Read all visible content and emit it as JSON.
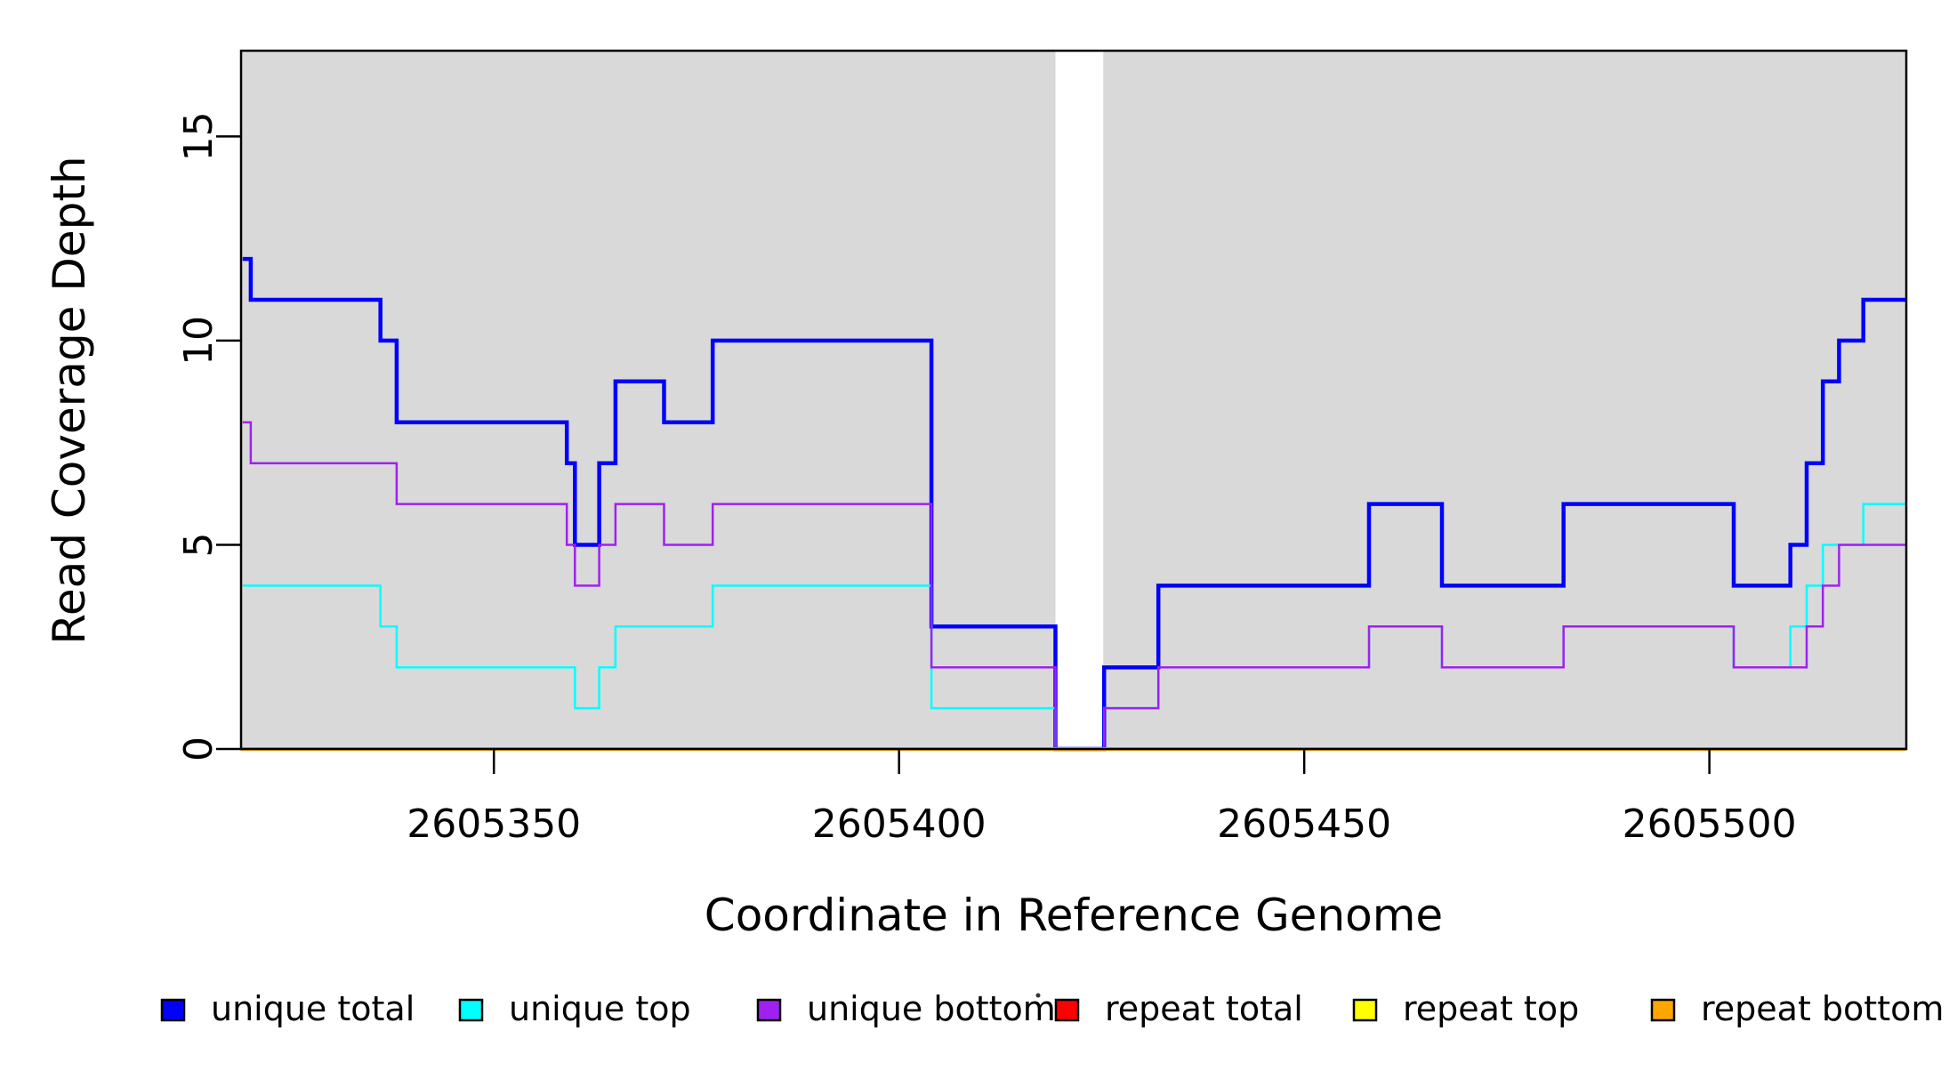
{
  "figure": {
    "canvas_background": "#FFFFFF",
    "plot_band_color": "#D9D9D9",
    "axis_color": "#000000"
  },
  "chart_data": {
    "type": "line",
    "subtype": "step-coverage",
    "title": "",
    "xlabel": "Coordinate in Reference Genome",
    "ylabel": "Read Coverage Depth",
    "xlim": [
      2605318.8,
      2605524.3
    ],
    "ylim": [
      0,
      17.1
    ],
    "grid": false,
    "x_ticks": [
      {
        "value": 2605350,
        "label": "2605350"
      },
      {
        "value": 2605400,
        "label": "2605400"
      },
      {
        "value": 2605450,
        "label": "2605450"
      },
      {
        "value": 2605500,
        "label": "2605500"
      }
    ],
    "y_ticks": [
      {
        "value": 0,
        "label": "0"
      },
      {
        "value": 5,
        "label": "5"
      },
      {
        "value": 10,
        "label": "10"
      },
      {
        "value": 15,
        "label": "15"
      }
    ],
    "background_bands": [
      {
        "from": 2605318.8,
        "to": 2605419.3
      },
      {
        "from": 2605425.2,
        "to": 2605524.3
      }
    ],
    "uncovered_gap": {
      "from": 2605419.3,
      "to": 2605425.2
    },
    "x_end": 2605524.3,
    "series": [
      {
        "name": "unique total",
        "color": "#0000FF",
        "line_width": 4.5,
        "steps": [
          [
            2605319,
            12
          ],
          [
            2605320,
            11
          ],
          [
            2605336,
            10
          ],
          [
            2605338,
            8
          ],
          [
            2605359,
            7
          ],
          [
            2605360,
            5
          ],
          [
            2605363,
            7
          ],
          [
            2605365,
            9
          ],
          [
            2605371,
            8
          ],
          [
            2605377,
            10
          ],
          [
            2605404,
            3
          ],
          [
            2605419.3,
            0
          ],
          [
            2605425.3,
            2
          ],
          [
            2605432,
            4
          ],
          [
            2605458,
            6
          ],
          [
            2605467,
            4
          ],
          [
            2605482,
            6
          ],
          [
            2605503,
            4
          ],
          [
            2605510,
            5
          ],
          [
            2605512,
            7
          ],
          [
            2605514,
            9
          ],
          [
            2605516,
            10
          ],
          [
            2605519,
            11
          ]
        ]
      },
      {
        "name": "unique top",
        "color": "#00FFFF",
        "line_width": 2.5,
        "steps": [
          [
            2605319,
            4
          ],
          [
            2605336,
            3
          ],
          [
            2605338,
            2
          ],
          [
            2605360,
            1
          ],
          [
            2605363,
            2
          ],
          [
            2605365,
            3
          ],
          [
            2605377,
            4
          ],
          [
            2605404,
            1
          ],
          [
            2605419.3,
            0
          ],
          [
            2605425.3,
            1
          ],
          [
            2605432,
            2
          ],
          [
            2605458,
            3
          ],
          [
            2605467,
            2
          ],
          [
            2605482,
            3
          ],
          [
            2605503,
            2
          ],
          [
            2605510,
            3
          ],
          [
            2605512,
            4
          ],
          [
            2605514,
            5
          ],
          [
            2605519,
            6
          ]
        ]
      },
      {
        "name": "unique bottom",
        "color": "#A020F0",
        "line_width": 2.5,
        "steps": [
          [
            2605319,
            8
          ],
          [
            2605320,
            7
          ],
          [
            2605338,
            6
          ],
          [
            2605359,
            5
          ],
          [
            2605360,
            4
          ],
          [
            2605363,
            5
          ],
          [
            2605365,
            6
          ],
          [
            2605371,
            5
          ],
          [
            2605377,
            6
          ],
          [
            2605404,
            2
          ],
          [
            2605419.3,
            0
          ],
          [
            2605425.3,
            1
          ],
          [
            2605432,
            2
          ],
          [
            2605458,
            3
          ],
          [
            2605467,
            2
          ],
          [
            2605482,
            3
          ],
          [
            2605503,
            2
          ],
          [
            2605512,
            3
          ],
          [
            2605514,
            4
          ],
          [
            2605516,
            5
          ]
        ]
      },
      {
        "name": "repeat total",
        "color": "#FF0000",
        "line_width": 2.5,
        "steps": [
          [
            2605318.8,
            0
          ]
        ]
      },
      {
        "name": "repeat top",
        "color": "#FFFF00",
        "line_width": 2.5,
        "steps": [
          [
            2605318.8,
            0
          ]
        ]
      },
      {
        "name": "repeat bottom",
        "color": "#FFA500",
        "line_width": 4,
        "steps": [
          [
            2605318.8,
            0
          ]
        ]
      }
    ],
    "legend": {
      "position": "bottom",
      "items": [
        {
          "label": "unique total",
          "color": "#0000FF"
        },
        {
          "label": "unique top",
          "color": "#00FFFF"
        },
        {
          "label": "unique bottom",
          "color": "#A020F0"
        },
        {
          "label": "repeat total",
          "color": "#FF0000"
        },
        {
          "label": "repeat top",
          "color": "#FFFF00"
        },
        {
          "label": "repeat bottom",
          "color": "#FFA500"
        }
      ]
    }
  }
}
